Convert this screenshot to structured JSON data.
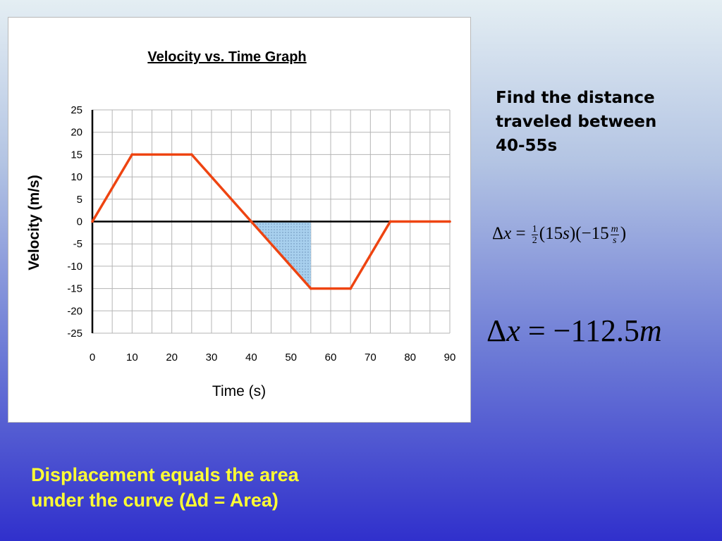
{
  "chart_data": {
    "type": "line",
    "title": "Velocity vs. Time Graph",
    "xlabel": "Time (s)",
    "ylabel": "Velocity (m/s)",
    "xlim": [
      0,
      90
    ],
    "ylim": [
      -25,
      25
    ],
    "x_ticks": [
      "0",
      "10",
      "20",
      "30",
      "40",
      "50",
      "60",
      "70",
      "80",
      "90"
    ],
    "y_ticks": [
      "25",
      "20",
      "15",
      "10",
      "5",
      "0",
      "-5",
      "-10",
      "-15",
      "-20",
      "-25"
    ],
    "grid": true,
    "series": [
      {
        "color": "#ee4411",
        "x": [
          0,
          10,
          25,
          40,
          55,
          65,
          75,
          90
        ],
        "y": [
          0,
          15,
          15,
          0,
          -15,
          -15,
          0,
          0
        ]
      }
    ],
    "shaded_region": {
      "x": [
        40,
        55,
        55
      ],
      "y": [
        0,
        0,
        -15
      ],
      "color": "#a8d0ee"
    }
  },
  "question": {
    "line1": "Find the distance",
    "line2": "traveled between",
    "line3": "40-55s"
  },
  "equation1": {
    "delta": "Δ",
    "var": "x",
    "eq": " = ",
    "half_num": "1",
    "half_den": "2",
    "term1_open": "(15",
    "term1_unit": "s",
    "term1_close": ")",
    "term2_open": "(−15",
    "unit_num": "m",
    "unit_den": "s",
    "term2_close": ")"
  },
  "equation2": {
    "delta": "Δ",
    "var": "x",
    "eq": " = ",
    "value": "−112.5",
    "unit": "m"
  },
  "caption": {
    "line1": "Displacement equals the area",
    "line2": "under the curve   (∆d = Area)"
  }
}
